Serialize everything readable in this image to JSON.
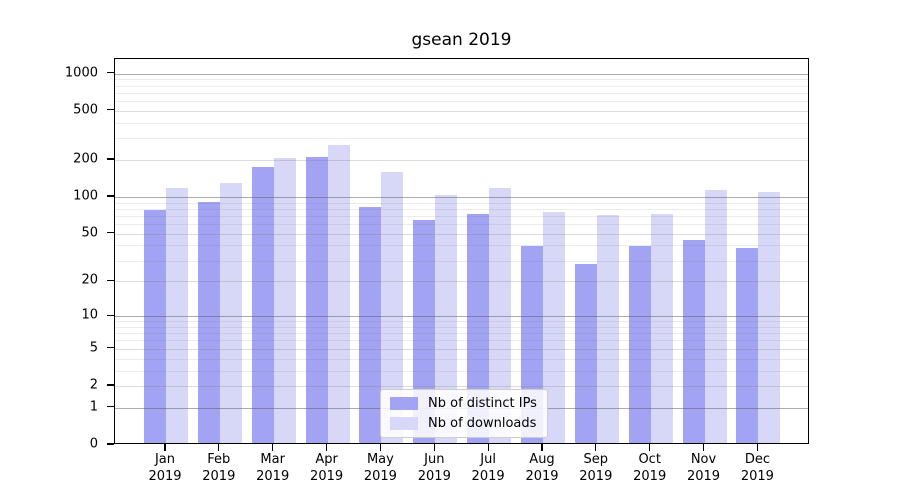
{
  "title": "gsean 2019",
  "legend": {
    "items": [
      {
        "label": "Nb of distinct IPs",
        "color": "#a2a3f2"
      },
      {
        "label": "Nb of downloads",
        "color": "#d7d8f8"
      }
    ]
  },
  "chart_data": {
    "type": "bar",
    "title": "gsean 2019",
    "categories": [
      "Jan 2019",
      "Feb 2019",
      "Mar 2019",
      "Apr 2019",
      "May 2019",
      "Jun 2019",
      "Jul 2019",
      "Aug 2019",
      "Sep 2019",
      "Oct 2019",
      "Nov 2019",
      "Dec 2019"
    ],
    "months": [
      "Jan",
      "Feb",
      "Mar",
      "Apr",
      "May",
      "Jun",
      "Jul",
      "Aug",
      "Sep",
      "Oct",
      "Nov",
      "Dec"
    ],
    "year": "2019",
    "series": [
      {
        "name": "Nb of distinct IPs",
        "color": "#a2a3f2",
        "values": [
          75,
          88,
          170,
          203,
          80,
          63,
          70,
          38,
          27,
          38,
          43,
          37
        ]
      },
      {
        "name": "Nb of downloads",
        "color": "#d7d8f8",
        "values": [
          115,
          125,
          200,
          255,
          155,
          100,
          115,
          73,
          69,
          70,
          110,
          105
        ]
      }
    ],
    "xlabel": "",
    "ylabel": "",
    "yscale": "symlog (t = ln(1+v))",
    "yticks": [
      1000,
      500,
      200,
      100,
      50,
      20,
      10,
      5,
      2,
      1,
      0
    ],
    "ylim": [
      0,
      1316
    ],
    "grid": true,
    "legend_position": "inside lower center"
  }
}
